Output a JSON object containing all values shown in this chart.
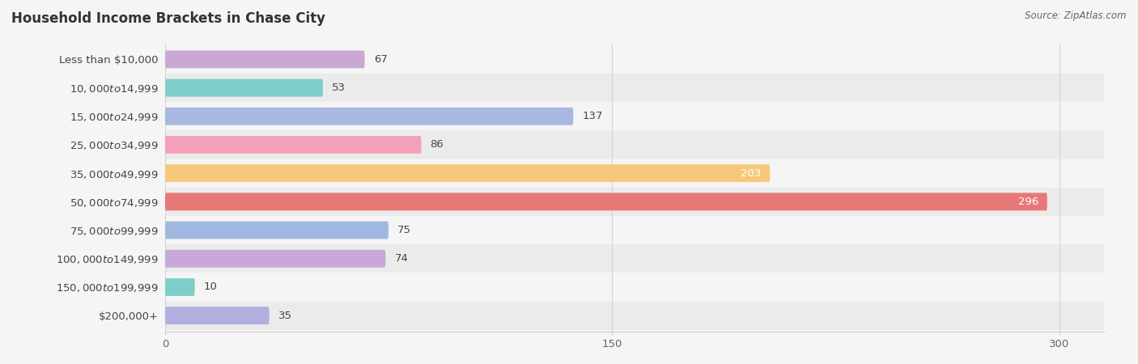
{
  "title": "Household Income Brackets in Chase City",
  "source": "Source: ZipAtlas.com",
  "categories": [
    "Less than $10,000",
    "$10,000 to $14,999",
    "$15,000 to $24,999",
    "$25,000 to $34,999",
    "$35,000 to $49,999",
    "$50,000 to $74,999",
    "$75,000 to $99,999",
    "$100,000 to $149,999",
    "$150,000 to $199,999",
    "$200,000+"
  ],
  "values": [
    67,
    53,
    137,
    86,
    203,
    296,
    75,
    74,
    10,
    35
  ],
  "bar_colors": [
    "#c9a8d4",
    "#7ececa",
    "#a8b8e0",
    "#f4a0b8",
    "#f8c87a",
    "#e87878",
    "#a0b8e0",
    "#c8a8d8",
    "#7ececa",
    "#b0b0e0"
  ],
  "xlim": [
    0,
    315
  ],
  "xticks": [
    0,
    150,
    300
  ],
  "bar_height": 0.62,
  "label_fontsize": 9.5,
  "title_fontsize": 12,
  "value_label_colors": [
    "#555555",
    "#555555",
    "#555555",
    "#555555",
    "#ffffff",
    "#ffffff",
    "#555555",
    "#555555",
    "#555555",
    "#555555"
  ],
  "background_color": "#f5f5f5",
  "row_bg_colors": [
    "#ebebeb",
    "#f5f5f5"
  ]
}
